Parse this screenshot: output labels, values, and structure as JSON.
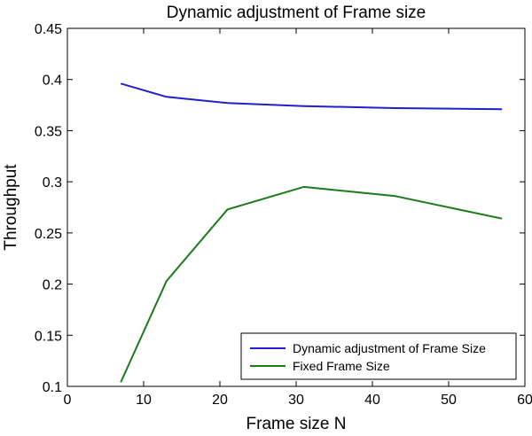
{
  "chart_data": {
    "type": "line",
    "title": "Dynamic adjustment of Frame size",
    "xlabel": "Frame size N",
    "ylabel": "Throughput",
    "xlim": [
      0,
      60
    ],
    "ylim": [
      0.1,
      0.45
    ],
    "xticks": [
      0,
      10,
      20,
      30,
      40,
      50,
      60
    ],
    "xtick_labels": [
      "0",
      "10",
      "20",
      "30",
      "40",
      "50",
      "60"
    ],
    "yticks": [
      0.1,
      0.15,
      0.2,
      0.25,
      0.3,
      0.35,
      0.4,
      0.45
    ],
    "ytick_labels": [
      "0.1",
      "0.15",
      "0.2",
      "0.25",
      "0.3",
      "0.35",
      "0.4",
      "0.45"
    ],
    "grid": false,
    "legend_position": "bottom-right",
    "series": [
      {
        "name": "Dynamic adjustment of Frame Size",
        "color": "#1f1fcc",
        "x": [
          7,
          13,
          21,
          31,
          43,
          57
        ],
        "y": [
          0.396,
          0.383,
          0.377,
          0.374,
          0.372,
          0.371
        ]
      },
      {
        "name": "Fixed Frame Size",
        "color": "#1a7a1a",
        "x": [
          7,
          13,
          21,
          31,
          43,
          57
        ],
        "y": [
          0.104,
          0.203,
          0.273,
          0.295,
          0.286,
          0.264
        ]
      }
    ]
  }
}
